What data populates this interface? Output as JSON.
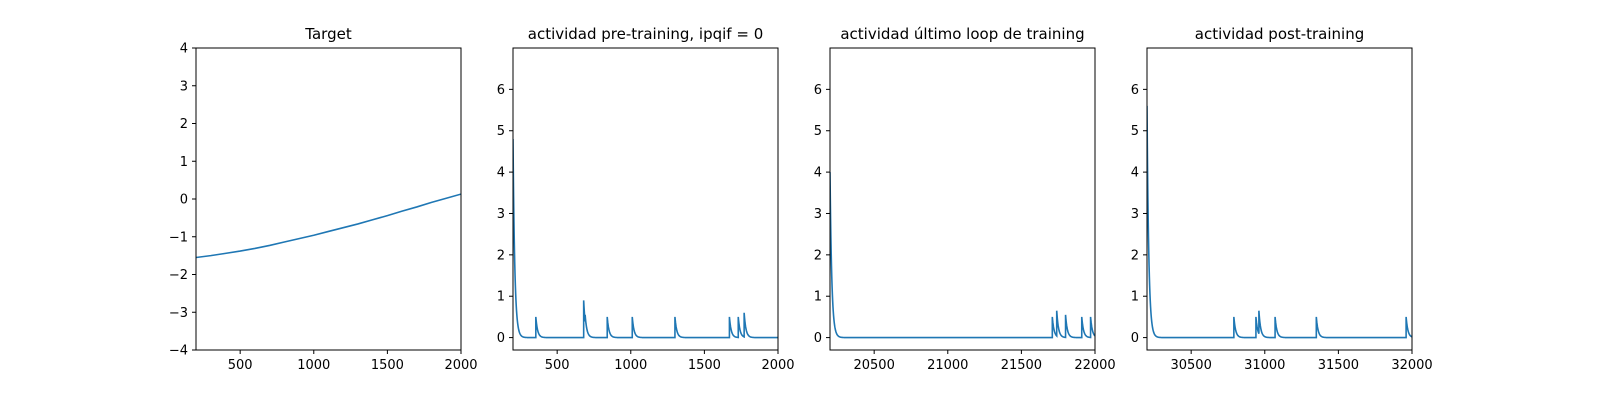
{
  "chart_data": [
    {
      "type": "line",
      "title": "Target",
      "xlim": [
        200,
        2000
      ],
      "ylim": [
        -4,
        4
      ],
      "xticks": [
        500,
        1000,
        1500,
        2000
      ],
      "yticks": [
        -4,
        -3,
        -2,
        -1,
        0,
        1,
        2,
        3,
        4
      ],
      "color": "#1f77b4",
      "x": [
        200,
        300,
        400,
        500,
        600,
        700,
        800,
        900,
        1000,
        1100,
        1200,
        1300,
        1400,
        1500,
        1600,
        1700,
        1800,
        1900,
        2000
      ],
      "y": [
        -1.55,
        -1.5,
        -1.44,
        -1.38,
        -1.31,
        -1.23,
        -1.14,
        -1.05,
        -0.96,
        -0.86,
        -0.76,
        -0.66,
        -0.55,
        -0.44,
        -0.32,
        -0.21,
        -0.09,
        0.02,
        0.13
      ]
    },
    {
      "type": "line",
      "title": "actividad pre-training, ipqif = 0",
      "xlim": [
        200,
        2000
      ],
      "ylim": [
        -0.3,
        7.0
      ],
      "xticks": [
        500,
        1000,
        1500,
        2000
      ],
      "yticks": [
        0,
        1,
        2,
        3,
        4,
        5,
        6
      ],
      "color": "#1f77b4",
      "initial": 4.8,
      "baseline": 0,
      "spikes": [
        {
          "x": 355,
          "peak": 0.5
        },
        {
          "x": 680,
          "peak": 0.9
        },
        {
          "x": 690,
          "peak": 0.55
        },
        {
          "x": 840,
          "peak": 0.5
        },
        {
          "x": 1010,
          "peak": 0.5
        },
        {
          "x": 1300,
          "peak": 0.5
        },
        {
          "x": 1670,
          "peak": 0.5
        },
        {
          "x": 1730,
          "peak": 0.5
        },
        {
          "x": 1770,
          "peak": 0.6
        }
      ]
    },
    {
      "type": "line",
      "title": "actividad último loop de training",
      "xlim": [
        20200,
        22000
      ],
      "ylim": [
        -0.3,
        7.0
      ],
      "xticks": [
        20500,
        21000,
        21500,
        22000
      ],
      "yticks": [
        0,
        1,
        2,
        3,
        4,
        5,
        6
      ],
      "color": "#1f77b4",
      "initial": 4.0,
      "baseline": 0,
      "spikes": [
        {
          "x": 21710,
          "peak": 0.5
        },
        {
          "x": 21740,
          "peak": 0.65
        },
        {
          "x": 21800,
          "peak": 0.55
        },
        {
          "x": 21910,
          "peak": 0.5
        },
        {
          "x": 21970,
          "peak": 0.5
        }
      ]
    },
    {
      "type": "line",
      "title": "actividad post-training",
      "xlim": [
        30200,
        32000
      ],
      "ylim": [
        -0.3,
        7.0
      ],
      "xticks": [
        30500,
        31000,
        31500,
        32000
      ],
      "yticks": [
        0,
        1,
        2,
        3,
        4,
        5,
        6
      ],
      "color": "#1f77b4",
      "initial": 5.6,
      "baseline": 0,
      "spikes": [
        {
          "x": 30790,
          "peak": 0.5
        },
        {
          "x": 30940,
          "peak": 0.5
        },
        {
          "x": 30960,
          "peak": 0.65
        },
        {
          "x": 31070,
          "peak": 0.5
        },
        {
          "x": 31350,
          "peak": 0.5
        },
        {
          "x": 31960,
          "peak": 0.5
        }
      ]
    }
  ]
}
